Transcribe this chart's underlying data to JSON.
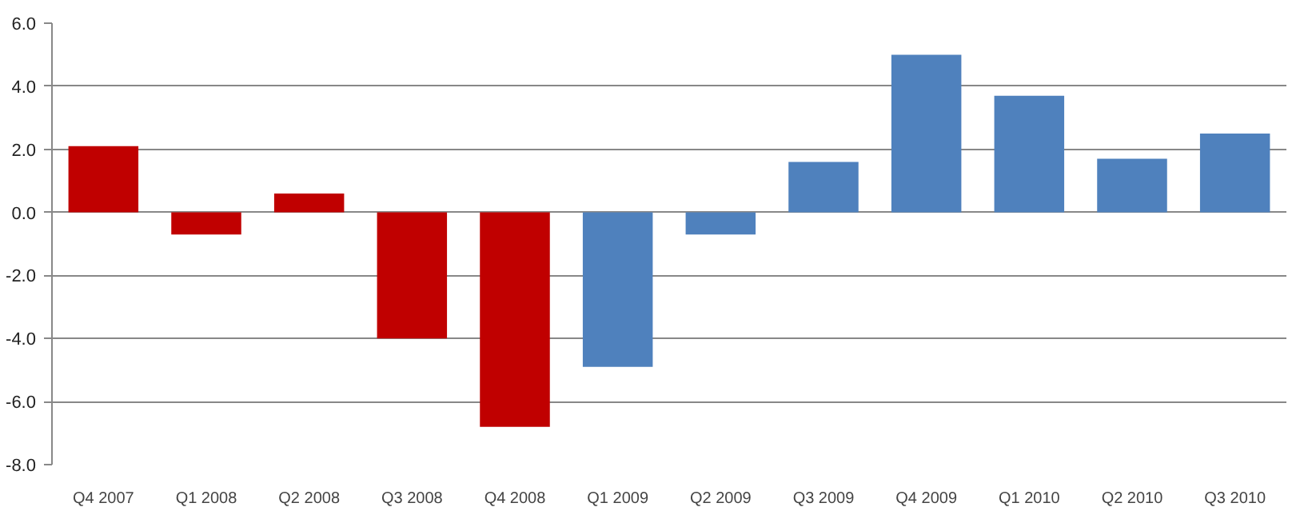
{
  "chart_data": {
    "type": "bar",
    "categories": [
      "Q4 2007",
      "Q1 2008",
      "Q2 2008",
      "Q3 2008",
      "Q4 2008",
      "Q1 2009",
      "Q2 2009",
      "Q3 2009",
      "Q4 2009",
      "Q1 2010",
      "Q2 2010",
      "Q3 2010"
    ],
    "values": [
      2.1,
      -0.7,
      0.6,
      -4.0,
      -6.8,
      -4.9,
      -0.7,
      1.6,
      5.0,
      3.7,
      1.7,
      2.5
    ],
    "colors": [
      "#c00000",
      "#c00000",
      "#c00000",
      "#c00000",
      "#c00000",
      "#4f81bd",
      "#4f81bd",
      "#4f81bd",
      "#4f81bd",
      "#4f81bd",
      "#4f81bd",
      "#4f81bd"
    ],
    "ylim": [
      -8.0,
      6.0
    ],
    "yticks": [
      {
        "value": -8,
        "label": "-8.0"
      },
      {
        "value": -6,
        "label": "-6.0"
      },
      {
        "value": -4,
        "label": "-4.0"
      },
      {
        "value": -2,
        "label": "-2.0"
      },
      {
        "value": 0,
        "label": "0.0"
      },
      {
        "value": 2,
        "label": "2.0"
      },
      {
        "value": 4,
        "label": "4.0"
      },
      {
        "value": 6,
        "label": "6.0"
      }
    ],
    "grid": "y"
  }
}
